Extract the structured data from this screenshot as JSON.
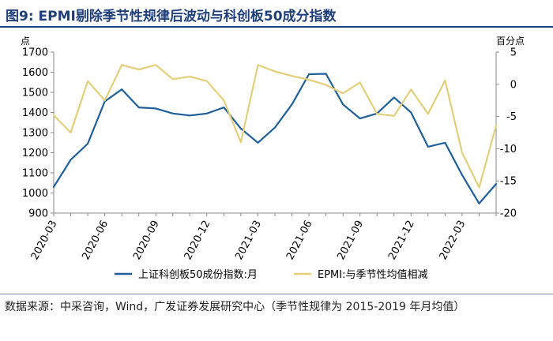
{
  "title": "图9:  EPMI剔除季节性规律后波动与科创板50成分指数",
  "source": "数据来源：中采咨询，Wind，广发证券发展研究中心（季节性规律为 2015-2019 年月均值）",
  "chart_data": {
    "type": "line",
    "title": "",
    "x_labels": [
      "2020-03",
      "2020-04",
      "2020-05",
      "2020-06",
      "2020-07",
      "2020-08",
      "2020-09",
      "2020-10",
      "2020-11",
      "2020-12",
      "2021-01",
      "2021-02",
      "2021-03",
      "2021-04",
      "2021-05",
      "2021-06",
      "2021-07",
      "2021-08",
      "2021-09",
      "2021-10",
      "2021-11",
      "2021-12",
      "2022-01",
      "2022-02",
      "2022-03",
      "2022-04",
      "2022-05"
    ],
    "x_tick_labels": [
      "2020-03",
      "2020-06",
      "2020-09",
      "2020-12",
      "2021-03",
      "2021-06",
      "2021-09",
      "2021-12",
      "2022-03"
    ],
    "left_axis": {
      "unit_label": "点",
      "ylim": [
        900,
        1700
      ],
      "ticks": [
        900,
        1000,
        1100,
        1200,
        1300,
        1400,
        1500,
        1600,
        1700
      ]
    },
    "right_axis": {
      "unit_label": "百分点",
      "ylim": [
        -20,
        5
      ],
      "ticks": [
        -20,
        -15,
        -10,
        -5,
        0,
        5
      ]
    },
    "series": [
      {
        "name": "上证科创板50成份指数:月",
        "axis": "left",
        "color": "#1f5f9a",
        "values": [
          1030,
          1165,
          1245,
          1455,
          1515,
          1425,
          1420,
          1395,
          1385,
          1395,
          1425,
          1320,
          1250,
          1325,
          1440,
          1590,
          1592,
          1440,
          1370,
          1395,
          1475,
          1400,
          1230,
          1250,
          1090,
          948,
          1045
        ]
      },
      {
        "name": "EPMI:与季节性均值相减",
        "axis": "right",
        "color": "#e3cf7a",
        "values": [
          -4.8,
          -7.5,
          0.5,
          -2.5,
          3,
          2.3,
          3,
          0.8,
          1.2,
          0.5,
          -2.5,
          -9,
          3,
          2,
          1.3,
          0.7,
          -0.1,
          -1.4,
          0.3,
          -4.6,
          -4.9,
          -0.8,
          -4.6,
          0.6,
          -10.6,
          -16,
          -6.4
        ]
      }
    ],
    "grid": false,
    "legend_position": "bottom"
  }
}
